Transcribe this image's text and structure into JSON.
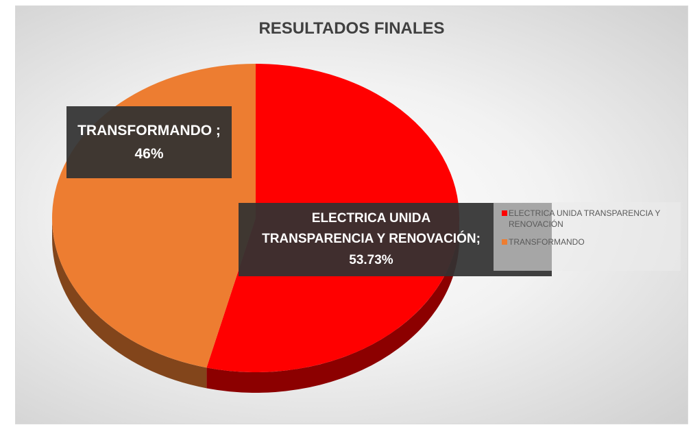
{
  "chart_data": {
    "type": "pie",
    "title": "RESULTADOS FINALES",
    "categories": [
      "ELECTRICA UNIDA TRANSPARENCIA Y RENOVACIÓN",
      "TRANSFORMANDO"
    ],
    "values": [
      53.73,
      46
    ],
    "value_labels": [
      "ELECTRICA UNIDA TRANSPARENCIA Y RENOVACIÓN; 53.73%",
      "TRANSFORMANDO ; 46%"
    ],
    "colors": [
      "#ff0000",
      "#ed7d31"
    ],
    "legend": "right"
  }
}
